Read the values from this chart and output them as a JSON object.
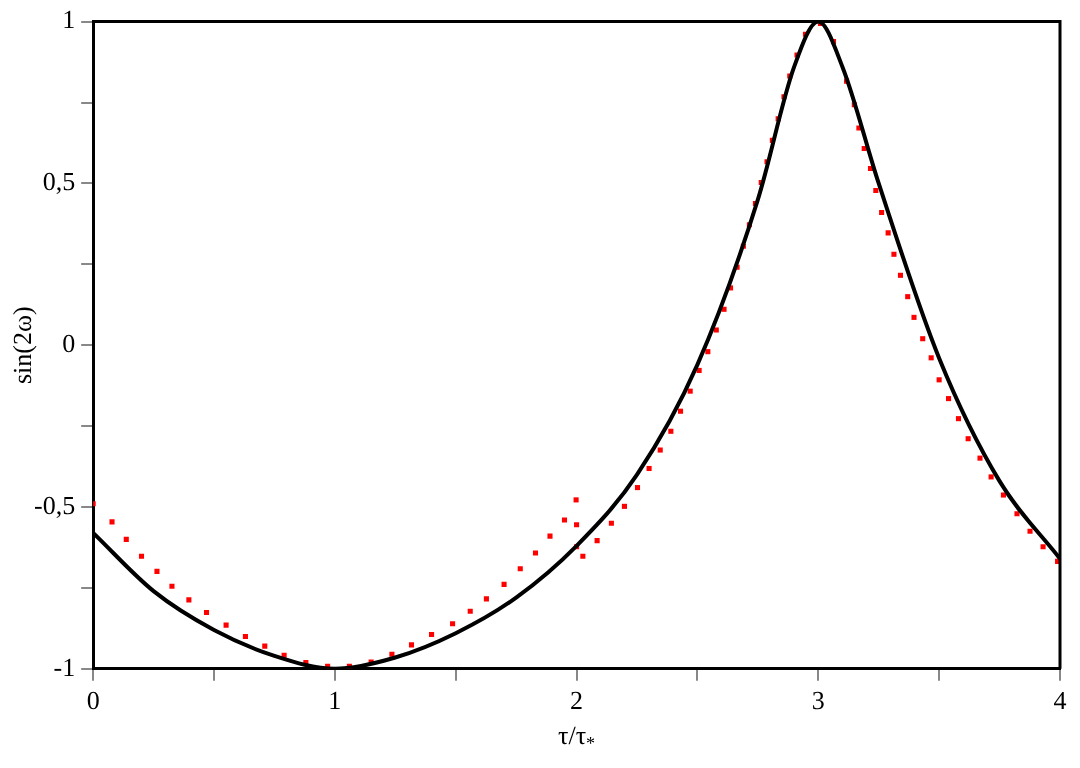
{
  "chart_data": {
    "type": "line",
    "xlabel": "τ/τ$_{*}$",
    "ylabel": "sin(2ω)",
    "xlim": [
      0,
      4
    ],
    "ylim": [
      -1,
      1
    ],
    "xticks": [
      0,
      {
        "value": 0.5,
        "label": null
      },
      1,
      {
        "value": 1.5,
        "label": null
      },
      2,
      {
        "value": 2.5,
        "label": null
      },
      3,
      {
        "value": 3.5,
        "label": null
      },
      4
    ],
    "yticks": [
      -1,
      {
        "value": -0.75,
        "label": null
      },
      {
        "value": -0.5,
        "label": "-0,5"
      },
      {
        "value": -0.25,
        "label": null
      },
      0,
      {
        "value": 0.25,
        "label": null
      },
      {
        "value": 0.5,
        "label": "0,5"
      },
      {
        "value": 0.75,
        "label": null
      },
      1
    ],
    "grid": false,
    "legend": false,
    "series": [
      {
        "type": "line",
        "color": "#000000",
        "marker": "none",
        "line_style": "solid",
        "x": [
          0,
          0.25,
          0.5,
          0.75,
          1.0,
          1.25,
          1.5,
          1.75,
          2,
          2.25,
          2.5,
          2.75,
          2.9,
          3,
          3.1,
          3.25,
          3.5,
          3.75,
          4
        ],
        "values": [
          -0.58,
          -0.76,
          -0.88,
          -0.96,
          -1,
          -0.965,
          -0.89,
          -0.78,
          -0.62,
          -0.4,
          -0.06,
          0.45,
          0.86,
          1,
          0.86,
          0.5,
          -0.04,
          -0.42,
          -0.66
        ]
      },
      {
        "type": "scatter",
        "color": "#ff0000",
        "marker": "square",
        "x": [
          0,
          0.078,
          0.137,
          0.2,
          0.264,
          0.326,
          0.396,
          0.469,
          0.55,
          0.63,
          0.71,
          0.79,
          0.88,
          0.97,
          1.06,
          1.15,
          1.236,
          1.317,
          1.4,
          1.487,
          1.56,
          1.627,
          1.7,
          1.767,
          1.83,
          1.89,
          1.95,
          1.998,
          2,
          2,
          2.026,
          2.085,
          2.144,
          2.198,
          2.252,
          2.3,
          2.346,
          2.39,
          2.43,
          2.47,
          2.507,
          2.543,
          2.578,
          2.61,
          2.637,
          2.664,
          2.69,
          2.715,
          2.74,
          2.764,
          2.788,
          2.81,
          2.834,
          2.858,
          2.882,
          2.912,
          2.947,
          3.009,
          3.063,
          3.117,
          3.149,
          3.168,
          3.19,
          3.216,
          3.238,
          3.262,
          3.289,
          3.313,
          3.34,
          3.37,
          3.396,
          3.432,
          3.467,
          3.5,
          3.539,
          3.58,
          3.62,
          3.669,
          3.715,
          3.766,
          3.822,
          3.876,
          3.93,
          3.99
        ],
        "values": [
          -0.49,
          -0.546,
          -0.6,
          -0.652,
          -0.699,
          -0.745,
          -0.787,
          -0.826,
          -0.865,
          -0.9,
          -0.93,
          -0.958,
          -0.981,
          -0.992,
          -0.992,
          -0.979,
          -0.955,
          -0.926,
          -0.894,
          -0.861,
          -0.822,
          -0.784,
          -0.739,
          -0.691,
          -0.642,
          -0.59,
          -0.54,
          -0.478,
          -0.555,
          -0.623,
          -0.652,
          -0.604,
          -0.55,
          -0.498,
          -0.44,
          -0.381,
          -0.324,
          -0.266,
          -0.204,
          -0.142,
          -0.078,
          -0.02,
          0.047,
          0.111,
          0.177,
          0.241,
          0.306,
          0.372,
          0.438,
          0.503,
          0.567,
          0.633,
          0.7,
          0.768,
          0.832,
          0.897,
          0.961,
          0.994,
          0.938,
          0.816,
          0.743,
          0.671,
          0.608,
          0.546,
          0.478,
          0.41,
          0.347,
          0.281,
          0.216,
          0.15,
          0.086,
          0.02,
          -0.039,
          -0.107,
          -0.165,
          -0.227,
          -0.289,
          -0.349,
          -0.407,
          -0.463,
          -0.521,
          -0.575,
          -0.623,
          -0.668
        ]
      }
    ]
  }
}
